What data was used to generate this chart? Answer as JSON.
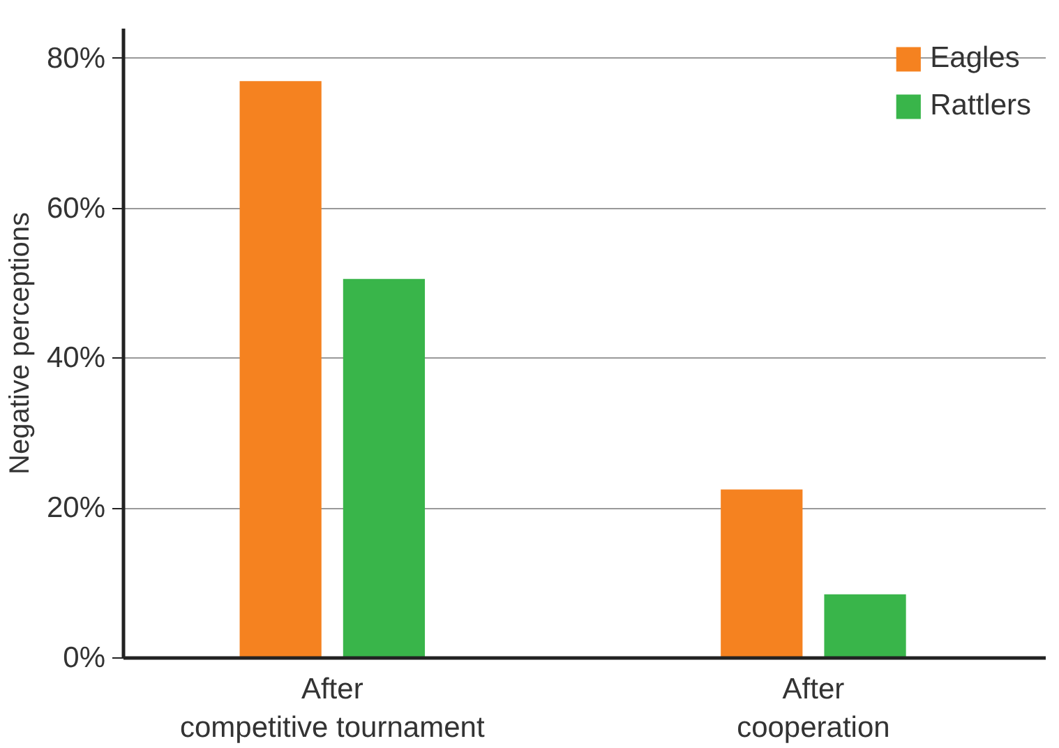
{
  "chart_data": {
    "type": "bar",
    "ylabel": "Negative perceptions",
    "categories": [
      "After\ncompetitive tournament",
      "After\ncooperation"
    ],
    "series": [
      {
        "name": "Eagles",
        "color": "#f58220",
        "values": [
          77,
          22.5
        ]
      },
      {
        "name": "Rattlers",
        "color": "#39b54a",
        "values": [
          50.6,
          8.5
        ]
      }
    ],
    "ylim": [
      0,
      84
    ],
    "yticks": [
      {
        "value": 0,
        "label": "0%"
      },
      {
        "value": 20,
        "label": "20%"
      },
      {
        "value": 40,
        "label": "40%"
      },
      {
        "value": 60,
        "label": "60%"
      },
      {
        "value": 80,
        "label": "80%"
      }
    ],
    "grid": "y",
    "legend": "top right"
  }
}
